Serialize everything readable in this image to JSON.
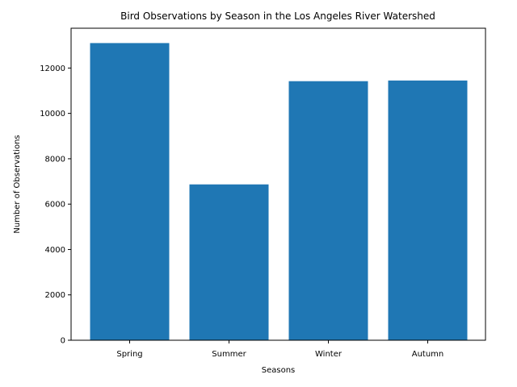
{
  "chart_data": {
    "type": "bar",
    "title": "Bird Observations by Season in the Los Angeles River Watershed",
    "xlabel": "Seasons",
    "ylabel": "Number of Observations",
    "categories": [
      "Spring",
      "Summer",
      "Winter",
      "Autumn"
    ],
    "values": [
      13100,
      6870,
      11420,
      11450
    ],
    "ylim": [
      0,
      13755
    ],
    "yticks": [
      0,
      2000,
      4000,
      6000,
      8000,
      10000,
      12000
    ],
    "ytick_labels": [
      "0",
      "2000",
      "4000",
      "6000",
      "8000",
      "10000",
      "12000"
    ],
    "bar_color": "#1f77b4",
    "grid": false,
    "legend": "none"
  }
}
